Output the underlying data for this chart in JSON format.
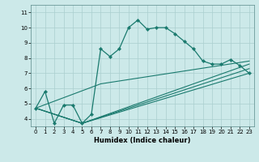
{
  "xlabel": "Humidex (Indice chaleur)",
  "ylabel": "",
  "xlim": [
    -0.5,
    23.5
  ],
  "ylim": [
    3.5,
    11.5
  ],
  "xticks": [
    0,
    1,
    2,
    3,
    4,
    5,
    6,
    7,
    8,
    9,
    10,
    11,
    12,
    13,
    14,
    15,
    16,
    17,
    18,
    19,
    20,
    21,
    22,
    23
  ],
  "yticks": [
    4,
    5,
    6,
    7,
    8,
    9,
    10,
    11
  ],
  "bg_color": "#cce9e9",
  "line_color": "#1a7a6e",
  "grid_color": "#aacfcf",
  "lines": [
    {
      "x": [
        0,
        1,
        2,
        3,
        4,
        5,
        6,
        7,
        8,
        9,
        10,
        11,
        12,
        13,
        14,
        15,
        16,
        17,
        18,
        19,
        20,
        21,
        22,
        23
      ],
      "y": [
        4.7,
        5.8,
        3.7,
        4.9,
        4.9,
        3.7,
        4.3,
        8.6,
        8.1,
        8.6,
        10.0,
        10.5,
        9.9,
        10.0,
        10.0,
        9.6,
        9.1,
        8.6,
        7.8,
        7.6,
        7.6,
        7.9,
        7.5,
        7.0
      ],
      "marker": true
    },
    {
      "x": [
        0,
        5,
        23
      ],
      "y": [
        4.7,
        3.7,
        7.0
      ],
      "marker": false
    },
    {
      "x": [
        0,
        5,
        23
      ],
      "y": [
        4.7,
        3.7,
        7.3
      ],
      "marker": false
    },
    {
      "x": [
        0,
        5,
        23
      ],
      "y": [
        4.7,
        3.7,
        7.6
      ],
      "marker": false
    },
    {
      "x": [
        0,
        7,
        23
      ],
      "y": [
        4.7,
        6.3,
        7.8
      ],
      "marker": false
    }
  ]
}
